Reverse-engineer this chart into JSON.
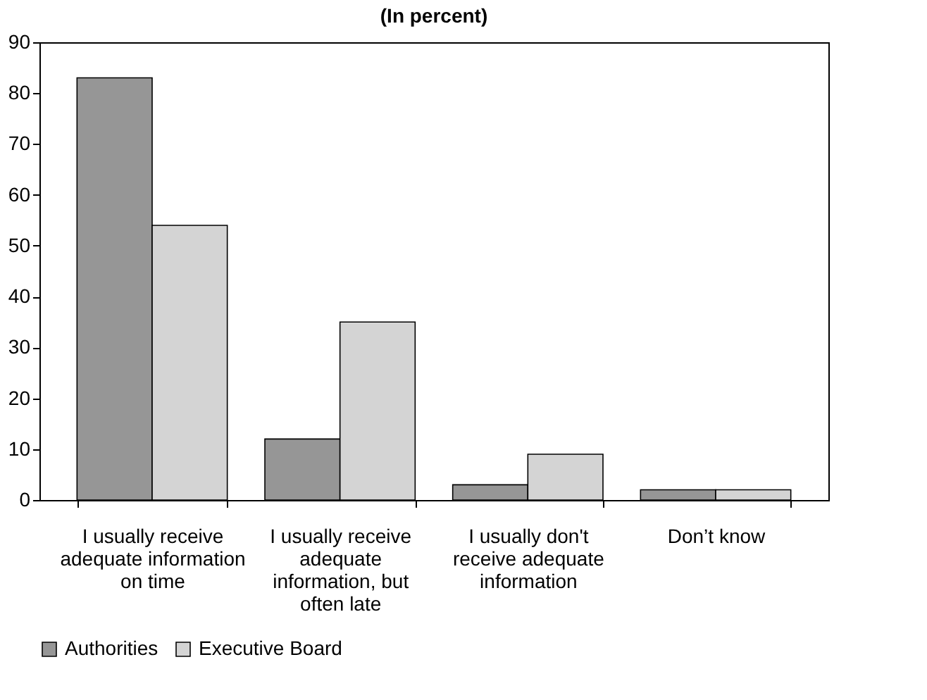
{
  "chart_data": {
    "type": "bar",
    "title": "(In percent)",
    "categories": [
      "I usually receive adequate information on time",
      "I usually receive adequate information, but often late",
      "I usually don't receive adequate information",
      "Don’t know"
    ],
    "series": [
      {
        "name": "Authorities",
        "color": "#969696",
        "values": [
          83,
          12,
          3,
          2
        ]
      },
      {
        "name": "Executive Board",
        "color": "#d4d4d4",
        "values": [
          54,
          35,
          9,
          2
        ]
      }
    ],
    "ylim": [
      0,
      90
    ],
    "yticks": [
      0,
      10,
      20,
      30,
      40,
      50,
      60,
      70,
      80,
      90
    ],
    "grid": false,
    "legend": "bottom"
  }
}
